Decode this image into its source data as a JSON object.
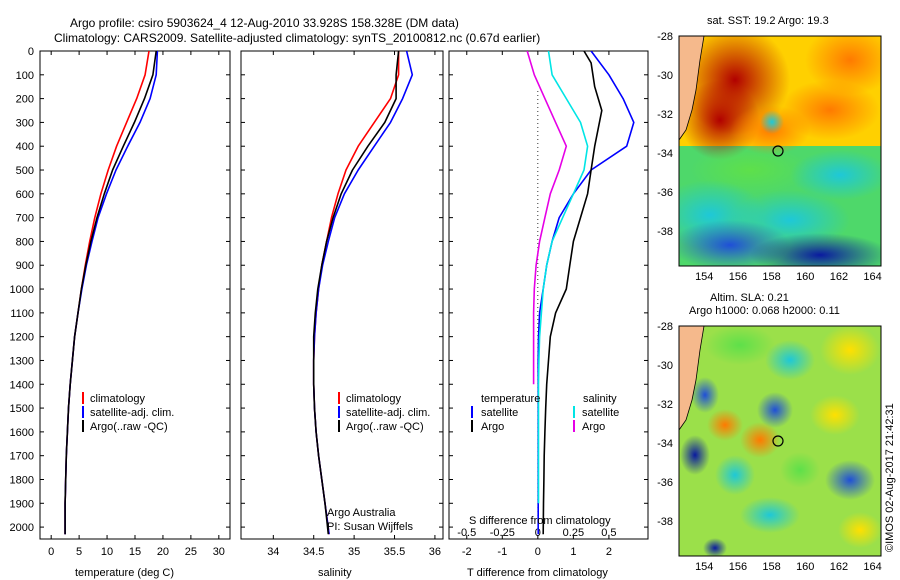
{
  "header": {
    "line1": "Argo profile: csiro 5903624_4 12-Aug-2010 33.928S 158.328E (DM data)",
    "line2": "Climatology: CARS2009. Satellite-adjusted climatology: synTS_20100812.nc (0.67d earlier)"
  },
  "colors": {
    "climatology": "#ff0000",
    "satellite": "#0000ff",
    "argo": "#000000",
    "sat_salinity": "#00e5e5",
    "argo_salinity": "#e600e6"
  },
  "chart_data": [
    {
      "type": "line",
      "id": "temperature",
      "xlabel": "temperature (deg C)",
      "xlim": [
        -2,
        32
      ],
      "xticks": [
        0,
        5,
        10,
        15,
        20,
        25,
        30
      ],
      "ylim": [
        0,
        2050
      ],
      "yticks": [
        0,
        100,
        200,
        300,
        400,
        500,
        600,
        700,
        800,
        900,
        1000,
        1100,
        1200,
        1300,
        1400,
        1500,
        1600,
        1700,
        1800,
        1900,
        2000
      ],
      "legend": [
        "climatology",
        "satellite-adj. clim.",
        "Argo(..raw -QC)"
      ],
      "series": [
        {
          "name": "climatology",
          "color": "#ff0000",
          "x": [
            17.5,
            16.8,
            15.3,
            13.5,
            11.7,
            10.2,
            8.9,
            7.8,
            6.9,
            6.1,
            5.4,
            4.8,
            4.2,
            3.8,
            3.4,
            3.1,
            2.9,
            2.7,
            2.6,
            2.5,
            2.5
          ],
          "y": [
            0,
            100,
            200,
            300,
            400,
            500,
            600,
            700,
            800,
            900,
            1000,
            1100,
            1200,
            1300,
            1400,
            1500,
            1600,
            1700,
            1800,
            1900,
            2030
          ]
        },
        {
          "name": "satellite-adj. clim.",
          "color": "#0000ff",
          "x": [
            19.0,
            18.8,
            17.7,
            15.9,
            13.7,
            11.6,
            9.9,
            8.4,
            7.3,
            6.3,
            5.5,
            4.8,
            4.2,
            3.8,
            3.4,
            3.1,
            2.9,
            2.7,
            2.6,
            2.5,
            2.5
          ],
          "y": [
            0,
            100,
            200,
            300,
            400,
            500,
            600,
            700,
            800,
            900,
            1000,
            1100,
            1200,
            1300,
            1400,
            1500,
            1600,
            1700,
            1800,
            1900,
            2030
          ]
        },
        {
          "name": "Argo(..raw -QC)",
          "color": "#000000",
          "x": [
            18.8,
            18.2,
            16.7,
            14.9,
            12.9,
            11.0,
            9.5,
            8.2,
            7.1,
            6.2,
            5.4,
            4.8,
            4.2,
            3.8,
            3.4,
            3.1,
            2.9,
            2.7,
            2.6,
            2.5,
            2.5
          ],
          "y": [
            0,
            100,
            200,
            300,
            400,
            500,
            600,
            700,
            800,
            900,
            1000,
            1100,
            1200,
            1300,
            1400,
            1500,
            1600,
            1700,
            1800,
            1900,
            2030
          ]
        }
      ]
    },
    {
      "type": "line",
      "id": "salinity",
      "xlabel": "salinity",
      "xlim": [
        33.6,
        36.1
      ],
      "xticks": [
        34,
        34.5,
        35,
        35.5,
        36
      ],
      "ylim": [
        0,
        2050
      ],
      "legend": [
        "climatology",
        "satellite-adj. clim.",
        "Argo(..raw -QC)"
      ],
      "annotation": [
        "Argo Australia",
        "PI: Susan Wijffels"
      ],
      "series": [
        {
          "name": "climatology",
          "color": "#ff0000",
          "x": [
            35.55,
            35.55,
            35.45,
            35.25,
            35.05,
            34.9,
            34.8,
            34.72,
            34.66,
            34.6,
            34.56,
            34.53,
            34.51,
            34.5,
            34.5,
            34.51,
            34.53,
            34.56,
            34.6,
            34.64,
            34.69
          ],
          "y": [
            0,
            100,
            200,
            300,
            400,
            500,
            600,
            700,
            800,
            900,
            1000,
            1100,
            1200,
            1300,
            1400,
            1500,
            1600,
            1700,
            1800,
            1900,
            2030
          ]
        },
        {
          "name": "satellite-adj. clim.",
          "color": "#0000ff",
          "x": [
            35.65,
            35.72,
            35.6,
            35.45,
            35.25,
            35.05,
            34.88,
            34.76,
            34.68,
            34.61,
            34.56,
            34.53,
            34.51,
            34.5,
            34.5,
            34.51,
            34.53,
            34.56,
            34.6,
            34.64,
            34.69
          ],
          "y": [
            0,
            100,
            200,
            300,
            400,
            500,
            600,
            700,
            800,
            900,
            1000,
            1100,
            1200,
            1300,
            1400,
            1500,
            1600,
            1700,
            1800,
            1900,
            2030
          ]
        },
        {
          "name": "Argo(..raw -QC)",
          "color": "#000000",
          "x": [
            35.55,
            35.52,
            35.52,
            35.38,
            35.17,
            34.98,
            34.84,
            34.74,
            34.66,
            34.6,
            34.55,
            34.52,
            34.5,
            34.5,
            34.5,
            34.51,
            34.53,
            34.56,
            34.6,
            34.64,
            34.68
          ],
          "y": [
            0,
            100,
            200,
            300,
            400,
            500,
            600,
            700,
            800,
            900,
            1000,
            1100,
            1200,
            1300,
            1400,
            1500,
            1600,
            1700,
            1800,
            1900,
            2030
          ]
        }
      ]
    },
    {
      "type": "line",
      "id": "difference",
      "xlabel": "T difference from climatology",
      "xlabel_top": "S difference from climatology",
      "xlim": [
        -2.5,
        3.1
      ],
      "xticks": [
        -2,
        -1,
        0,
        1,
        2
      ],
      "s_ticks": [
        "-0.5",
        "-0.25",
        "0",
        "0.25",
        "0.5"
      ],
      "s_tick_pos": [
        -2,
        -1,
        0,
        1,
        2
      ],
      "ylim": [
        0,
        2050
      ],
      "legend_temperature": "temperature",
      "legend_salinity": "salinity",
      "legend_items": [
        "satellite",
        "Argo",
        "satellite",
        "Argo"
      ],
      "series": [
        {
          "name": "T satellite",
          "color": "#0000ff",
          "x": [
            1.5,
            2.0,
            2.4,
            2.7,
            2.5,
            1.5,
            1.0,
            0.6,
            0.4,
            0.25,
            0.15,
            0.05,
            0.02,
            0.01,
            0.01,
            0.01,
            0.01,
            0.01,
            0.01,
            0.01,
            0.01
          ],
          "y": [
            0,
            100,
            200,
            300,
            400,
            500,
            600,
            700,
            800,
            900,
            1000,
            1100,
            1200,
            1300,
            1400,
            1500,
            1600,
            1700,
            1800,
            1900,
            2030
          ]
        },
        {
          "name": "T Argo",
          "color": "#000000",
          "x": [
            1.3,
            1.5,
            1.6,
            1.8,
            1.6,
            1.5,
            1.4,
            1.2,
            1.0,
            0.9,
            0.8,
            0.5,
            0.35,
            0.3,
            0.25,
            0.22,
            0.2,
            0.18,
            0.17,
            0.16,
            0.15
          ],
          "y": [
            0,
            50,
            150,
            250,
            400,
            500,
            600,
            700,
            800,
            900,
            1000,
            1100,
            1200,
            1300,
            1400,
            1500,
            1600,
            1700,
            1800,
            1900,
            2030
          ]
        },
        {
          "name": "S satellite",
          "color": "#00e5e5",
          "x": [
            0.3,
            0.4,
            0.8,
            1.2,
            1.4,
            1.3,
            1.0,
            0.7,
            0.4,
            0.25,
            0.15,
            0.1,
            0.05,
            0.03,
            0.02,
            0.02,
            0.02,
            0.02,
            0.02,
            0.02
          ],
          "y": [
            0,
            100,
            200,
            300,
            400,
            500,
            600,
            700,
            800,
            900,
            1000,
            1100,
            1200,
            1300,
            1400,
            1500,
            1600,
            1700,
            1800,
            1900
          ]
        },
        {
          "name": "S Argo",
          "color": "#e600e6",
          "x": [
            -0.3,
            -0.1,
            0.2,
            0.5,
            0.8,
            0.6,
            0.35,
            0.2,
            0.05,
            -0.05,
            -0.1,
            -0.12,
            -0.12,
            -0.12
          ],
          "y": [
            0,
            100,
            200,
            300,
            400,
            500,
            600,
            700,
            800,
            900,
            1000,
            1100,
            1200,
            1400
          ]
        }
      ]
    },
    {
      "type": "heatmap",
      "id": "sst_map",
      "title": "sat. SST: 19.2  Argo: 19.3",
      "xticks": [
        154,
        156,
        158,
        160,
        162,
        164
      ],
      "yticks": [
        -28,
        -30,
        -32,
        -34,
        -36,
        -38
      ],
      "xlim": [
        152.5,
        164.5
      ],
      "ylim": [
        -39.8,
        -28
      ],
      "marker": [
        158.33,
        -33.93
      ]
    },
    {
      "type": "heatmap",
      "id": "sla_map",
      "title1": "Altim. SLA: 0.21",
      "title2": "Argo h1000: 0.068 h2000: 0.11",
      "xticks": [
        154,
        156,
        158,
        160,
        162,
        164
      ],
      "yticks": [
        -28,
        -30,
        -32,
        -34,
        -36,
        -38
      ],
      "xlim": [
        152.5,
        164.5
      ],
      "ylim": [
        -39.8,
        -28
      ],
      "marker": [
        158.33,
        -33.93
      ]
    }
  ],
  "footer": {
    "credit": "©IMOS 02-Aug-2017 21:42:31"
  }
}
